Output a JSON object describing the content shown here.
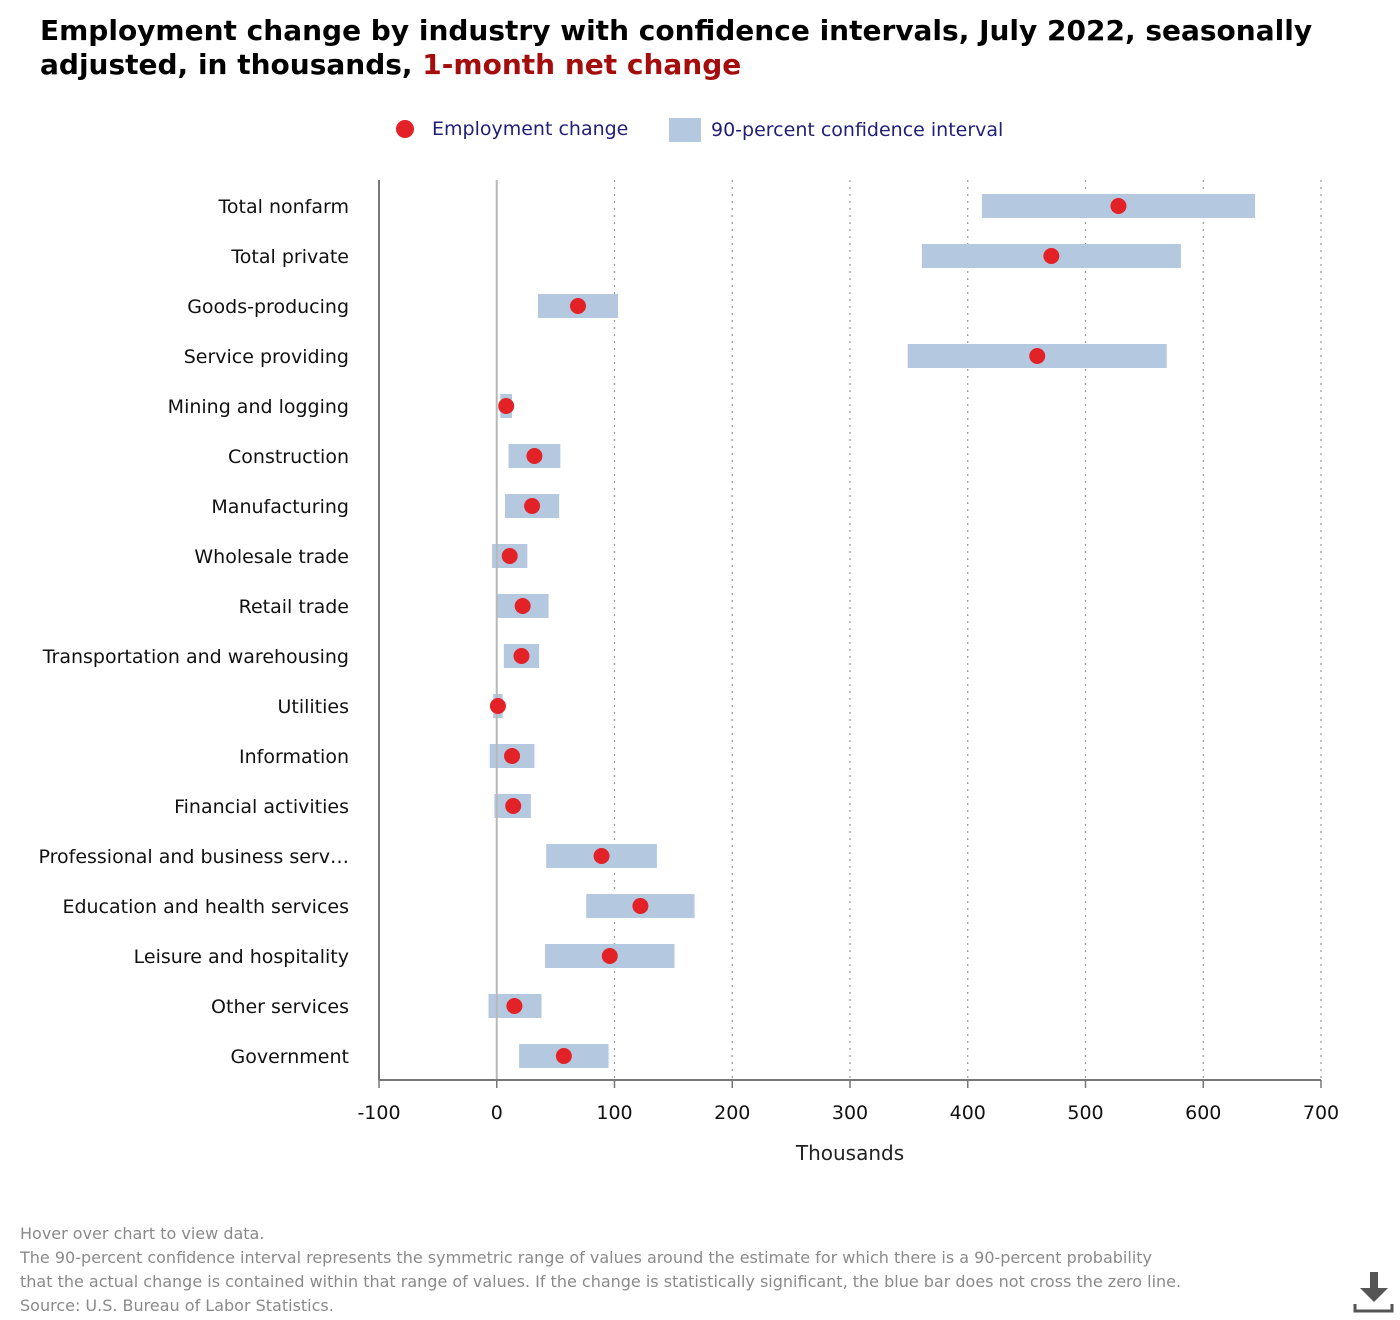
{
  "title": {
    "main": "Employment change by industry with confidence intervals, July 2022, seasonally adjusted, in thousands,",
    "highlight": "1-month net change"
  },
  "legend": {
    "point_label": "Employment change",
    "interval_label": "90-percent confidence interval"
  },
  "notes": {
    "line1": "Hover over chart to view data.",
    "line2": "The 90-percent confidence interval represents the symmetric range of values around the estimate for which there is a 90-percent probability",
    "line3": "that the actual change is contained within that range of values. If the change is statistically significant, the blue bar does not cross the zero line.",
    "line4": "Source: U.S. Bureau of Labor Statistics."
  },
  "download_icon": "download-icon",
  "colors": {
    "point": "#e32227",
    "interval": "#b4c8e0",
    "title_highlight": "#a50d0d",
    "legend_text": "#1f1f7a"
  },
  "chart_data": {
    "type": "scatter",
    "xlabel": "Thousands",
    "ylabel": "",
    "xlim": [
      -100,
      700
    ],
    "xticks": [
      -100,
      0,
      100,
      200,
      300,
      400,
      500,
      600,
      700
    ],
    "grid": "vertical dotted",
    "legend_position": "top",
    "categories": [
      "Total nonfarm",
      "Total private",
      "Goods-producing",
      "Service providing",
      "Mining and logging",
      "Construction",
      "Manufacturing",
      "Wholesale trade",
      "Retail trade",
      "Transportation and warehousing",
      "Utilities",
      "Information",
      "Financial activities",
      "Professional and business serv…",
      "Education and health services",
      "Leisure and hospitality",
      "Other services",
      "Government"
    ],
    "series": [
      {
        "name": "Employment change",
        "values": [
          528,
          471,
          69,
          459,
          8,
          32,
          30,
          11,
          22,
          21,
          1,
          13,
          14,
          89,
          122,
          96,
          15,
          57
        ]
      },
      {
        "name": "90-percent confidence interval",
        "low": [
          412,
          361,
          35,
          349,
          3,
          10,
          7,
          -4,
          0,
          6,
          -3,
          -6,
          -2,
          42,
          76,
          41,
          -7,
          19
        ],
        "high": [
          644,
          581,
          103,
          569,
          13,
          54,
          53,
          26,
          44,
          36,
          5,
          32,
          29,
          136,
          168,
          151,
          38,
          95
        ]
      }
    ]
  }
}
